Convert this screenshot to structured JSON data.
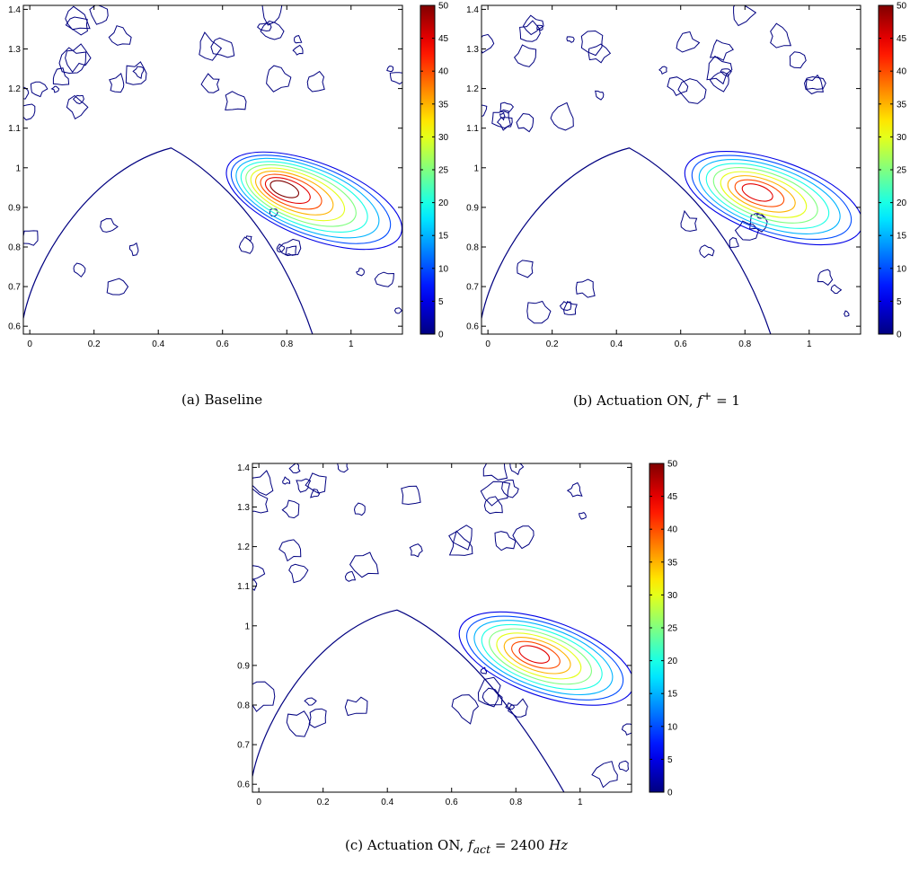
{
  "chart_data": [
    {
      "type": "contour",
      "caption": {
        "tag": "(a)",
        "text": "Baseline"
      },
      "xlim": [
        -0.02,
        1.16
      ],
      "ylim": [
        0.58,
        1.41
      ],
      "x_ticks": [
        0,
        0.2,
        0.4,
        0.6,
        0.8,
        1
      ],
      "y_ticks": [
        0.6,
        0.7,
        0.8,
        0.9,
        1,
        1.1,
        1.2,
        1.3,
        1.4
      ],
      "colorbar": {
        "min": 0,
        "max": 50,
        "ticks": [
          0,
          5,
          10,
          15,
          20,
          25,
          30,
          35,
          40,
          45,
          50
        ],
        "colormap": "jet"
      },
      "contour_levels": [
        0,
        5,
        10,
        15,
        20,
        25,
        30,
        35,
        40,
        45,
        50
      ],
      "peak": {
        "x": 0.78,
        "y": 0.95,
        "value": 50
      },
      "jet_axis": {
        "start": [
          0.62,
          0.99
        ],
        "end": [
          1.16,
          0.82
        ]
      },
      "dome": {
        "x_start": -0.02,
        "x_peak": 0.44,
        "y_peak": 1.05,
        "x_end": 0.88,
        "y_end": 0.58
      }
    },
    {
      "type": "contour",
      "caption": {
        "tag": "(b)",
        "text": "Actuation ON, ",
        "math": "f",
        "sup": "+",
        "math_tail": " = 1"
      },
      "xlim": [
        -0.02,
        1.16
      ],
      "ylim": [
        0.58,
        1.41
      ],
      "x_ticks": [
        0,
        0.2,
        0.4,
        0.6,
        0.8,
        1
      ],
      "y_ticks": [
        0.6,
        0.7,
        0.8,
        0.9,
        1,
        1.1,
        1.2,
        1.3,
        1.4
      ],
      "colorbar": {
        "min": 0,
        "max": 50,
        "ticks": [
          0,
          5,
          10,
          15,
          20,
          25,
          30,
          35,
          40,
          45,
          50
        ],
        "colormap": "jet"
      },
      "contour_levels": [
        0,
        5,
        10,
        15,
        20,
        25,
        30,
        35,
        40,
        45
      ],
      "peak": {
        "x": 0.83,
        "y": 0.94,
        "value": 45
      },
      "jet_axis": {
        "start": [
          0.62,
          0.99
        ],
        "end": [
          1.16,
          0.84
        ]
      },
      "dome": {
        "x_start": -0.02,
        "x_peak": 0.44,
        "y_peak": 1.05,
        "x_end": 0.88,
        "y_end": 0.58
      }
    },
    {
      "type": "contour",
      "caption": {
        "tag": "(c)",
        "text": "Actuation ON, ",
        "math": "f",
        "sub": "act",
        "math_tail": " = 2400 ",
        "unit": "Hz"
      },
      "xlim": [
        -0.02,
        1.16
      ],
      "ylim": [
        0.58,
        1.41
      ],
      "x_ticks": [
        0,
        0.2,
        0.4,
        0.6,
        0.8,
        1
      ],
      "y_ticks": [
        0.6,
        0.7,
        0.8,
        0.9,
        1,
        1.1,
        1.2,
        1.3,
        1.4
      ],
      "colorbar": {
        "min": 0,
        "max": 50,
        "ticks": [
          0,
          5,
          10,
          15,
          20,
          25,
          30,
          35,
          40,
          45,
          50
        ],
        "colormap": "jet"
      },
      "contour_levels": [
        0,
        5,
        10,
        15,
        20,
        25,
        30,
        35,
        40,
        45
      ],
      "peak": {
        "x": 0.85,
        "y": 0.93,
        "value": 45
      },
      "jet_axis": {
        "start": [
          0.63,
          0.99
        ],
        "end": [
          1.16,
          0.84
        ]
      },
      "dome": {
        "x_start": -0.02,
        "x_peak": 0.43,
        "y_peak": 1.04,
        "x_end": 0.95,
        "y_end": 0.58
      }
    }
  ]
}
